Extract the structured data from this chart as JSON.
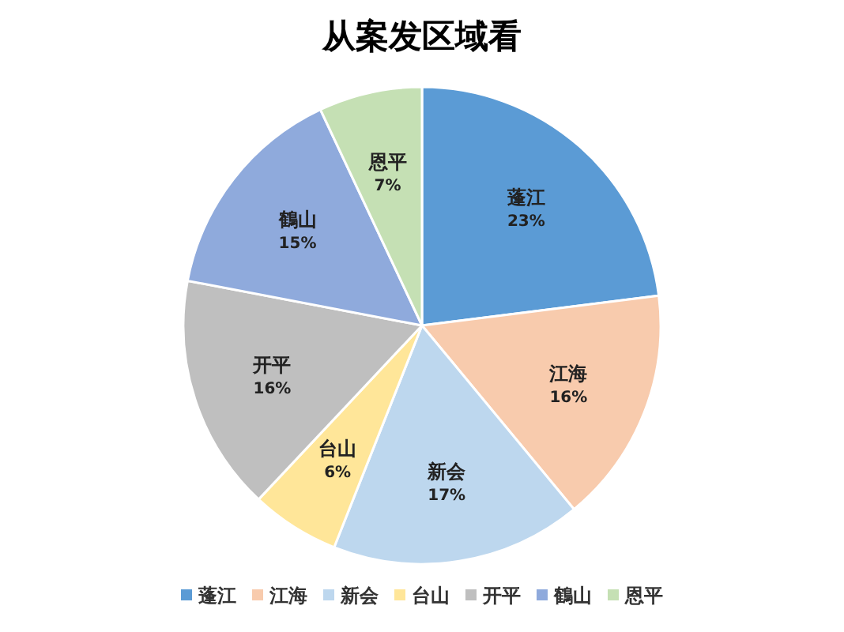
{
  "chart_data": {
    "type": "pie",
    "title": "从案发区域看",
    "categories": [
      "蓬江",
      "江海",
      "新会",
      "台山",
      "开平",
      "鶴山",
      "恩平"
    ],
    "values": [
      23,
      16,
      17,
      6,
      16,
      15,
      7
    ],
    "value_labels": [
      "23%",
      "16%",
      "17%",
      "6%",
      "16%",
      "15%",
      "7%"
    ],
    "colors": [
      "#5b9bd5",
      "#f8cbad",
      "#bdd7ee",
      "#ffe699",
      "#bfbfbf",
      "#8faadc",
      "#c5e0b4"
    ],
    "legend": "bottom"
  }
}
